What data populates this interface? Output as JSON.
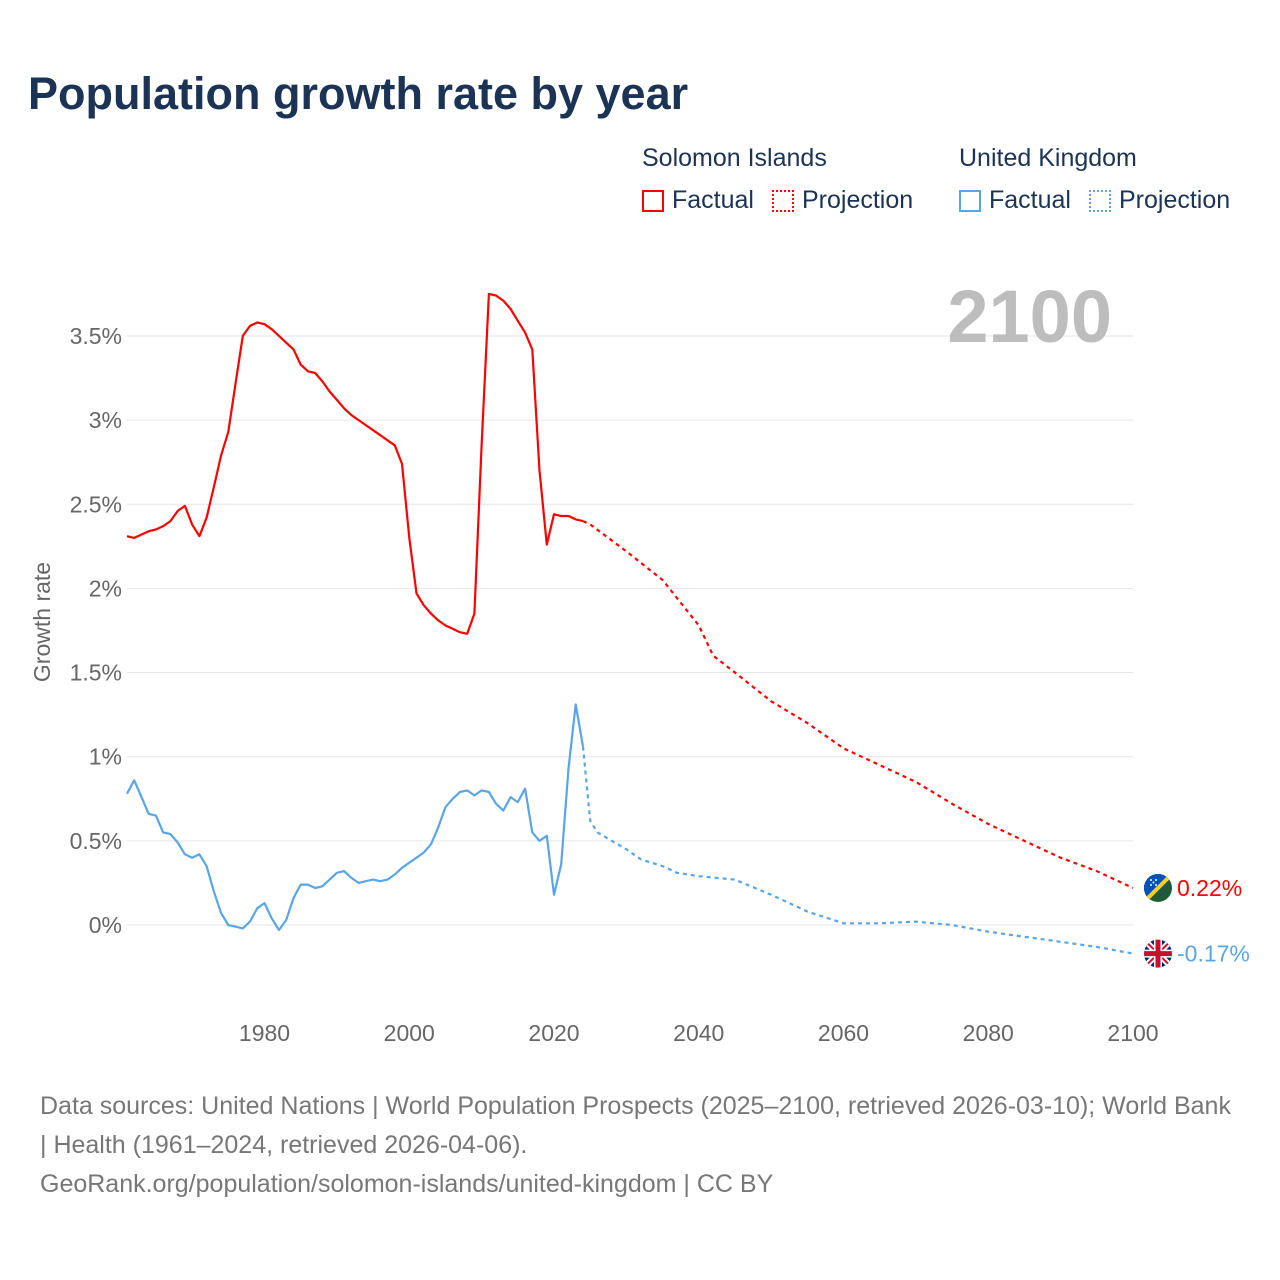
{
  "title": "Population growth rate by year",
  "legend": {
    "groups": [
      {
        "country": "Solomon Islands",
        "factual": "Factual",
        "projection": "Projection",
        "color": "#ff0000"
      },
      {
        "country": "United Kingdom",
        "factual": "Factual",
        "projection": "Projection",
        "color": "#5aa5e8"
      }
    ]
  },
  "footer": {
    "sources": "Data sources: United Nations | World Population Prospects (2025–2100, retrieved 2026-03-10); World Bank | Health (1961–2024, retrieved 2026-04-06).",
    "link": "GeoRank.org/population/solomon-islands/united-kingdom | CC BY"
  },
  "chart_data": {
    "type": "line",
    "title": "Population growth rate by year",
    "current_year_label": "2100",
    "xlabel": "",
    "ylabel": "Growth rate",
    "xlim": [
      1961,
      2100
    ],
    "ylim": [
      -0.35,
      3.8
    ],
    "x_ticks": [
      1980,
      2000,
      2020,
      2040,
      2060,
      2080,
      2100
    ],
    "y_ticks": [
      {
        "value": 0,
        "label": "0%"
      },
      {
        "value": 0.5,
        "label": "0.5%"
      },
      {
        "value": 1,
        "label": "1%"
      },
      {
        "value": 1.5,
        "label": "1.5%"
      },
      {
        "value": 2,
        "label": "2%"
      },
      {
        "value": 2.5,
        "label": "2.5%"
      },
      {
        "value": 3,
        "label": "3%"
      },
      {
        "value": 3.5,
        "label": "3.5%"
      }
    ],
    "grid": true,
    "series": [
      {
        "name": "Solomon Islands",
        "color": "#ff0000",
        "end_label": "0.22%",
        "factual": {
          "start_year": 1961,
          "values": [
            2.31,
            2.3,
            2.32,
            2.34,
            2.35,
            2.37,
            2.4,
            2.46,
            2.49,
            2.38,
            2.31,
            2.42,
            2.6,
            2.79,
            2.93,
            3.22,
            3.5,
            3.56,
            3.58,
            3.57,
            3.54,
            3.5,
            3.46,
            3.42,
            3.33,
            3.29,
            3.28,
            3.23,
            3.17,
            3.12,
            3.07,
            3.03,
            3.0,
            2.97,
            2.94,
            2.91,
            2.88,
            2.85,
            2.74,
            2.3,
            1.97,
            1.9,
            1.85,
            1.81,
            1.78,
            1.76,
            1.74,
            1.73,
            1.85,
            2.85,
            3.75,
            3.74,
            3.71,
            3.66,
            3.59,
            3.52,
            3.42,
            2.7,
            2.26,
            2.44,
            2.43,
            2.43,
            2.41,
            2.4
          ]
        },
        "projection": {
          "x": [
            2024,
            2025,
            2030,
            2035,
            2040,
            2042,
            2045,
            2050,
            2055,
            2060,
            2065,
            2070,
            2075,
            2080,
            2085,
            2090,
            2095,
            2100
          ],
          "values": [
            2.4,
            2.38,
            2.22,
            2.05,
            1.78,
            1.6,
            1.5,
            1.33,
            1.2,
            1.05,
            0.95,
            0.85,
            0.72,
            0.6,
            0.5,
            0.4,
            0.32,
            0.22
          ]
        }
      },
      {
        "name": "United Kingdom",
        "color": "#5aa5e8",
        "end_label": "-0.17%",
        "factual": {
          "start_year": 1961,
          "values": [
            0.78,
            0.86,
            0.76,
            0.66,
            0.65,
            0.55,
            0.54,
            0.49,
            0.42,
            0.4,
            0.42,
            0.35,
            0.2,
            0.07,
            0.0,
            -0.01,
            -0.02,
            0.02,
            0.1,
            0.13,
            0.04,
            -0.03,
            0.03,
            0.16,
            0.24,
            0.24,
            0.22,
            0.23,
            0.27,
            0.31,
            0.32,
            0.28,
            0.25,
            0.26,
            0.27,
            0.26,
            0.27,
            0.3,
            0.34,
            0.37,
            0.4,
            0.43,
            0.48,
            0.58,
            0.7,
            0.75,
            0.79,
            0.8,
            0.77,
            0.8,
            0.79,
            0.72,
            0.68,
            0.76,
            0.73,
            0.81,
            0.55,
            0.5,
            0.53,
            0.18,
            0.36,
            0.93,
            1.31,
            1.06
          ]
        },
        "projection": {
          "x": [
            2024,
            2025,
            2026,
            2028,
            2030,
            2032,
            2035,
            2037,
            2040,
            2045,
            2050,
            2055,
            2060,
            2065,
            2070,
            2075,
            2080,
            2085,
            2090,
            2095,
            2100
          ],
          "values": [
            1.06,
            0.62,
            0.55,
            0.5,
            0.45,
            0.39,
            0.35,
            0.31,
            0.29,
            0.27,
            0.18,
            0.08,
            0.01,
            0.01,
            0.02,
            0.0,
            -0.04,
            -0.07,
            -0.1,
            -0.13,
            -0.17
          ]
        }
      }
    ]
  }
}
